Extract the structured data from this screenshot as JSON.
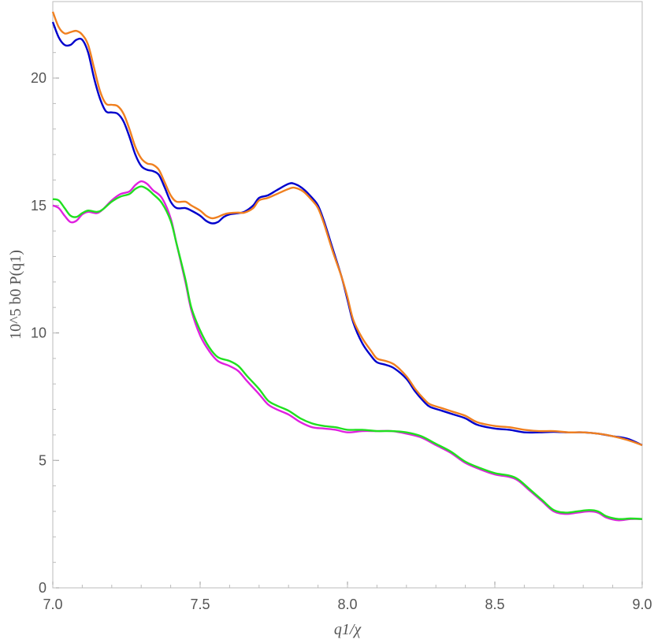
{
  "chart_data": {
    "type": "line",
    "title": "",
    "xlabel": "q1/χ",
    "ylabel": "10^5 b0 P(q1)",
    "xlim": [
      7.0,
      9.0
    ],
    "ylim": [
      0,
      23
    ],
    "x_ticks": [
      7.0,
      7.5,
      8.0,
      8.5,
      9.0
    ],
    "x_tick_labels": [
      "7.0",
      "7.5",
      "8.0",
      "8.5",
      "9.0"
    ],
    "y_ticks": [
      0,
      5,
      10,
      15,
      20
    ],
    "y_tick_labels": [
      "0",
      "5",
      "10",
      "15",
      "20"
    ],
    "grid": false,
    "legend": "none",
    "series": [
      {
        "color": "#0000cc",
        "points": [
          [
            7.0,
            22.2
          ],
          [
            7.02,
            21.6
          ],
          [
            7.04,
            21.3
          ],
          [
            7.06,
            21.3
          ],
          [
            7.08,
            21.5
          ],
          [
            7.1,
            21.5
          ],
          [
            7.12,
            21.0
          ],
          [
            7.14,
            20.0
          ],
          [
            7.16,
            19.2
          ],
          [
            7.18,
            18.7
          ],
          [
            7.2,
            18.65
          ],
          [
            7.22,
            18.6
          ],
          [
            7.24,
            18.3
          ],
          [
            7.26,
            17.7
          ],
          [
            7.28,
            17.0
          ],
          [
            7.3,
            16.55
          ],
          [
            7.32,
            16.4
          ],
          [
            7.34,
            16.35
          ],
          [
            7.36,
            16.2
          ],
          [
            7.38,
            15.7
          ],
          [
            7.4,
            15.15
          ],
          [
            7.42,
            14.9
          ],
          [
            7.45,
            14.9
          ],
          [
            7.47,
            14.8
          ],
          [
            7.5,
            14.6
          ],
          [
            7.52,
            14.4
          ],
          [
            7.54,
            14.3
          ],
          [
            7.56,
            14.35
          ],
          [
            7.58,
            14.55
          ],
          [
            7.6,
            14.65
          ],
          [
            7.63,
            14.7
          ],
          [
            7.65,
            14.75
          ],
          [
            7.68,
            15.0
          ],
          [
            7.7,
            15.3
          ],
          [
            7.73,
            15.4
          ],
          [
            7.76,
            15.6
          ],
          [
            7.8,
            15.85
          ],
          [
            7.82,
            15.85
          ],
          [
            7.85,
            15.65
          ],
          [
            7.88,
            15.3
          ],
          [
            7.9,
            15.0
          ],
          [
            7.92,
            14.4
          ],
          [
            7.95,
            13.3
          ],
          [
            7.98,
            12.2
          ],
          [
            8.0,
            11.3
          ],
          [
            8.02,
            10.4
          ],
          [
            8.05,
            9.6
          ],
          [
            8.08,
            9.1
          ],
          [
            8.1,
            8.85
          ],
          [
            8.13,
            8.75
          ],
          [
            8.16,
            8.6
          ],
          [
            8.2,
            8.2
          ],
          [
            8.23,
            7.7
          ],
          [
            8.26,
            7.3
          ],
          [
            8.28,
            7.1
          ],
          [
            8.32,
            6.95
          ],
          [
            8.36,
            6.8
          ],
          [
            8.4,
            6.65
          ],
          [
            8.44,
            6.4
          ],
          [
            8.5,
            6.25
          ],
          [
            8.55,
            6.2
          ],
          [
            8.6,
            6.1
          ],
          [
            8.65,
            6.1
          ],
          [
            8.7,
            6.12
          ],
          [
            8.75,
            6.1
          ],
          [
            8.8,
            6.1
          ],
          [
            8.85,
            6.05
          ],
          [
            8.9,
            5.95
          ],
          [
            8.95,
            5.85
          ],
          [
            9.0,
            5.6
          ]
        ]
      },
      {
        "color": "#f08020",
        "points": [
          [
            7.0,
            22.6
          ],
          [
            7.02,
            22.0
          ],
          [
            7.04,
            21.75
          ],
          [
            7.06,
            21.8
          ],
          [
            7.08,
            21.85
          ],
          [
            7.1,
            21.7
          ],
          [
            7.12,
            21.3
          ],
          [
            7.14,
            20.4
          ],
          [
            7.16,
            19.5
          ],
          [
            7.18,
            19.0
          ],
          [
            7.2,
            18.95
          ],
          [
            7.22,
            18.9
          ],
          [
            7.24,
            18.6
          ],
          [
            7.26,
            18.0
          ],
          [
            7.28,
            17.3
          ],
          [
            7.3,
            16.85
          ],
          [
            7.32,
            16.65
          ],
          [
            7.34,
            16.6
          ],
          [
            7.36,
            16.4
          ],
          [
            7.38,
            15.9
          ],
          [
            7.4,
            15.4
          ],
          [
            7.42,
            15.15
          ],
          [
            7.45,
            15.15
          ],
          [
            7.47,
            15.0
          ],
          [
            7.5,
            14.8
          ],
          [
            7.52,
            14.6
          ],
          [
            7.54,
            14.5
          ],
          [
            7.56,
            14.55
          ],
          [
            7.58,
            14.65
          ],
          [
            7.6,
            14.7
          ],
          [
            7.63,
            14.72
          ],
          [
            7.65,
            14.72
          ],
          [
            7.68,
            14.9
          ],
          [
            7.7,
            15.2
          ],
          [
            7.73,
            15.3
          ],
          [
            7.76,
            15.45
          ],
          [
            7.8,
            15.65
          ],
          [
            7.82,
            15.7
          ],
          [
            7.85,
            15.55
          ],
          [
            7.88,
            15.2
          ],
          [
            7.9,
            14.9
          ],
          [
            7.92,
            14.3
          ],
          [
            7.95,
            13.2
          ],
          [
            7.98,
            12.2
          ],
          [
            8.0,
            11.4
          ],
          [
            8.02,
            10.5
          ],
          [
            8.05,
            9.8
          ],
          [
            8.08,
            9.3
          ],
          [
            8.1,
            9.0
          ],
          [
            8.13,
            8.9
          ],
          [
            8.16,
            8.75
          ],
          [
            8.2,
            8.3
          ],
          [
            8.23,
            7.8
          ],
          [
            8.26,
            7.4
          ],
          [
            8.28,
            7.2
          ],
          [
            8.32,
            7.05
          ],
          [
            8.36,
            6.9
          ],
          [
            8.4,
            6.75
          ],
          [
            8.44,
            6.5
          ],
          [
            8.5,
            6.35
          ],
          [
            8.55,
            6.3
          ],
          [
            8.6,
            6.2
          ],
          [
            8.65,
            6.15
          ],
          [
            8.7,
            6.15
          ],
          [
            8.75,
            6.1
          ],
          [
            8.8,
            6.1
          ],
          [
            8.85,
            6.05
          ],
          [
            8.9,
            5.95
          ],
          [
            8.95,
            5.8
          ],
          [
            9.0,
            5.6
          ]
        ]
      },
      {
        "color": "#e020e0",
        "points": [
          [
            7.0,
            15.0
          ],
          [
            7.02,
            14.9
          ],
          [
            7.04,
            14.6
          ],
          [
            7.06,
            14.35
          ],
          [
            7.08,
            14.4
          ],
          [
            7.1,
            14.65
          ],
          [
            7.12,
            14.75
          ],
          [
            7.15,
            14.7
          ],
          [
            7.17,
            14.85
          ],
          [
            7.2,
            15.2
          ],
          [
            7.23,
            15.45
          ],
          [
            7.26,
            15.55
          ],
          [
            7.28,
            15.8
          ],
          [
            7.3,
            15.95
          ],
          [
            7.32,
            15.85
          ],
          [
            7.34,
            15.6
          ],
          [
            7.37,
            15.3
          ],
          [
            7.4,
            14.5
          ],
          [
            7.42,
            13.5
          ],
          [
            7.45,
            12.0
          ],
          [
            7.47,
            10.9
          ],
          [
            7.5,
            9.9
          ],
          [
            7.53,
            9.3
          ],
          [
            7.56,
            8.9
          ],
          [
            7.6,
            8.7
          ],
          [
            7.63,
            8.5
          ],
          [
            7.66,
            8.1
          ],
          [
            7.7,
            7.6
          ],
          [
            7.73,
            7.2
          ],
          [
            7.76,
            7.0
          ],
          [
            7.8,
            6.8
          ],
          [
            7.84,
            6.5
          ],
          [
            7.88,
            6.3
          ],
          [
            7.92,
            6.25
          ],
          [
            7.96,
            6.2
          ],
          [
            8.0,
            6.1
          ],
          [
            8.05,
            6.15
          ],
          [
            8.1,
            6.15
          ],
          [
            8.15,
            6.15
          ],
          [
            8.2,
            6.05
          ],
          [
            8.25,
            5.9
          ],
          [
            8.3,
            5.6
          ],
          [
            8.35,
            5.3
          ],
          [
            8.4,
            4.9
          ],
          [
            8.45,
            4.65
          ],
          [
            8.5,
            4.45
          ],
          [
            8.55,
            4.35
          ],
          [
            8.58,
            4.2
          ],
          [
            8.62,
            3.8
          ],
          [
            8.66,
            3.4
          ],
          [
            8.7,
            3.0
          ],
          [
            8.74,
            2.9
          ],
          [
            8.78,
            2.95
          ],
          [
            8.82,
            3.0
          ],
          [
            8.85,
            2.95
          ],
          [
            8.88,
            2.75
          ],
          [
            8.92,
            2.65
          ],
          [
            8.96,
            2.7
          ],
          [
            9.0,
            2.7
          ]
        ]
      },
      {
        "color": "#20e020",
        "points": [
          [
            7.0,
            15.25
          ],
          [
            7.02,
            15.2
          ],
          [
            7.04,
            14.9
          ],
          [
            7.06,
            14.6
          ],
          [
            7.08,
            14.55
          ],
          [
            7.1,
            14.7
          ],
          [
            7.12,
            14.8
          ],
          [
            7.15,
            14.75
          ],
          [
            7.17,
            14.85
          ],
          [
            7.2,
            15.15
          ],
          [
            7.23,
            15.35
          ],
          [
            7.26,
            15.45
          ],
          [
            7.28,
            15.65
          ],
          [
            7.3,
            15.75
          ],
          [
            7.32,
            15.65
          ],
          [
            7.34,
            15.45
          ],
          [
            7.37,
            15.1
          ],
          [
            7.4,
            14.4
          ],
          [
            7.42,
            13.5
          ],
          [
            7.45,
            12.1
          ],
          [
            7.47,
            11.0
          ],
          [
            7.5,
            10.1
          ],
          [
            7.53,
            9.45
          ],
          [
            7.56,
            9.05
          ],
          [
            7.6,
            8.9
          ],
          [
            7.63,
            8.7
          ],
          [
            7.66,
            8.3
          ],
          [
            7.7,
            7.8
          ],
          [
            7.73,
            7.35
          ],
          [
            7.76,
            7.15
          ],
          [
            7.8,
            6.95
          ],
          [
            7.84,
            6.65
          ],
          [
            7.88,
            6.45
          ],
          [
            7.92,
            6.35
          ],
          [
            7.96,
            6.3
          ],
          [
            8.0,
            6.2
          ],
          [
            8.05,
            6.2
          ],
          [
            8.1,
            6.15
          ],
          [
            8.15,
            6.15
          ],
          [
            8.2,
            6.1
          ],
          [
            8.25,
            5.95
          ],
          [
            8.3,
            5.65
          ],
          [
            8.35,
            5.35
          ],
          [
            8.4,
            4.95
          ],
          [
            8.45,
            4.7
          ],
          [
            8.5,
            4.5
          ],
          [
            8.55,
            4.4
          ],
          [
            8.58,
            4.25
          ],
          [
            8.62,
            3.85
          ],
          [
            8.66,
            3.45
          ],
          [
            8.7,
            3.05
          ],
          [
            8.74,
            2.95
          ],
          [
            8.78,
            3.0
          ],
          [
            8.82,
            3.05
          ],
          [
            8.85,
            3.0
          ],
          [
            8.88,
            2.8
          ],
          [
            8.92,
            2.7
          ],
          [
            8.96,
            2.72
          ],
          [
            9.0,
            2.7
          ]
        ]
      }
    ]
  }
}
